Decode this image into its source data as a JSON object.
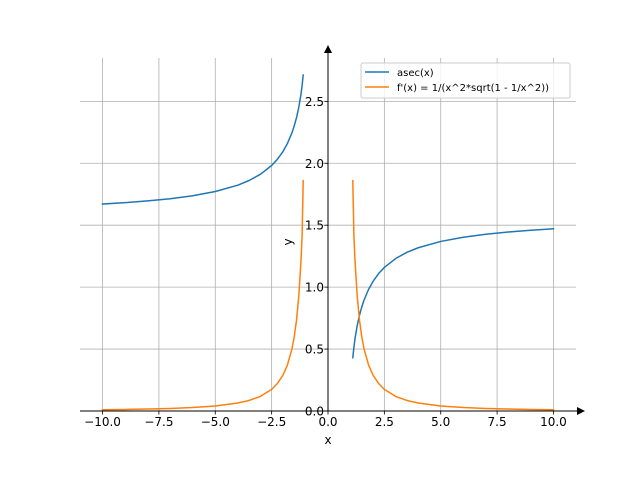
{
  "chart_data": {
    "type": "line",
    "xlabel": "x",
    "ylabel": "y",
    "xlim": [
      -11.0,
      11.0
    ],
    "ylim": [
      0.0,
      2.85
    ],
    "grid": true,
    "legend_position": "top-right",
    "x_ticks": [
      {
        "value": -10.0,
        "label": "−10.0"
      },
      {
        "value": -7.5,
        "label": "−7.5"
      },
      {
        "value": -5.0,
        "label": "−5.0"
      },
      {
        "value": -2.5,
        "label": "−2.5"
      },
      {
        "value": 0.0,
        "label": "0.0"
      },
      {
        "value": 2.5,
        "label": "2.5"
      },
      {
        "value": 5.0,
        "label": "5.0"
      },
      {
        "value": 7.5,
        "label": "7.5"
      },
      {
        "value": 10.0,
        "label": "10.0"
      }
    ],
    "y_ticks": [
      {
        "value": 0.0,
        "label": "0.0"
      },
      {
        "value": 0.5,
        "label": "0.5"
      },
      {
        "value": 1.0,
        "label": "1.0"
      },
      {
        "value": 1.5,
        "label": "1.5"
      },
      {
        "value": 2.0,
        "label": "2.0"
      },
      {
        "value": 2.5,
        "label": "2.5"
      }
    ],
    "series": [
      {
        "name": "asec(x)",
        "color": "#1f77b4",
        "segments": [
          {
            "x": [
              -10,
              -9,
              -8,
              -7,
              -6,
              -5,
              -4,
              -3.5,
              -3,
              -2.5,
              -2.25,
              -2,
              -1.8,
              -1.6,
              -1.5,
              -1.4,
              -1.3,
              -1.2,
              -1.15,
              -1.1
            ],
            "y": [
              1.671,
              1.682,
              1.696,
              1.714,
              1.738,
              1.772,
              1.823,
              1.861,
              1.911,
              1.982,
              2.031,
              2.094,
              2.16,
              2.246,
              2.301,
              2.366,
              2.448,
              2.556,
              2.626,
              2.712
            ]
          },
          {
            "x": [
              1.1,
              1.15,
              1.2,
              1.3,
              1.4,
              1.5,
              1.6,
              1.8,
              2,
              2.25,
              2.5,
              3,
              3.5,
              4,
              5,
              6,
              7,
              8,
              9,
              10
            ],
            "y": [
              0.43,
              0.516,
              0.586,
              0.694,
              0.775,
              0.841,
              0.896,
              0.982,
              1.047,
              1.111,
              1.159,
              1.231,
              1.281,
              1.318,
              1.369,
              1.403,
              1.427,
              1.445,
              1.459,
              1.471
            ]
          }
        ]
      },
      {
        "name": "f'(x) = 1/(x^2*sqrt(1 - 1/x^2))",
        "color": "#ff7f0e",
        "segments": [
          {
            "x": [
              -10,
              -9,
              -8,
              -7,
              -6,
              -5,
              -4,
              -3.5,
              -3,
              -2.5,
              -2.25,
              -2,
              -1.8,
              -1.6,
              -1.5,
              -1.4,
              -1.3,
              -1.2,
              -1.15,
              -1.1
            ],
            "y": [
              0.0101,
              0.0124,
              0.0157,
              0.0206,
              0.0282,
              0.0408,
              0.0645,
              0.0849,
              0.1179,
              0.1746,
              0.2212,
              0.2887,
              0.3721,
              0.5,
              0.5963,
              0.7289,
              0.9178,
              1.206,
              1.408,
              1.86
            ]
          },
          {
            "x": [
              1.1,
              1.15,
              1.2,
              1.3,
              1.4,
              1.5,
              1.6,
              1.8,
              2,
              2.25,
              2.5,
              3,
              3.5,
              4,
              5,
              6,
              7,
              8,
              9,
              10
            ],
            "y": [
              1.86,
              1.408,
              1.206,
              0.9178,
              0.7289,
              0.5963,
              0.5,
              0.3721,
              0.2887,
              0.2212,
              0.1746,
              0.1179,
              0.0849,
              0.0645,
              0.0408,
              0.0282,
              0.0206,
              0.0157,
              0.0124,
              0.0101
            ]
          }
        ]
      }
    ]
  }
}
